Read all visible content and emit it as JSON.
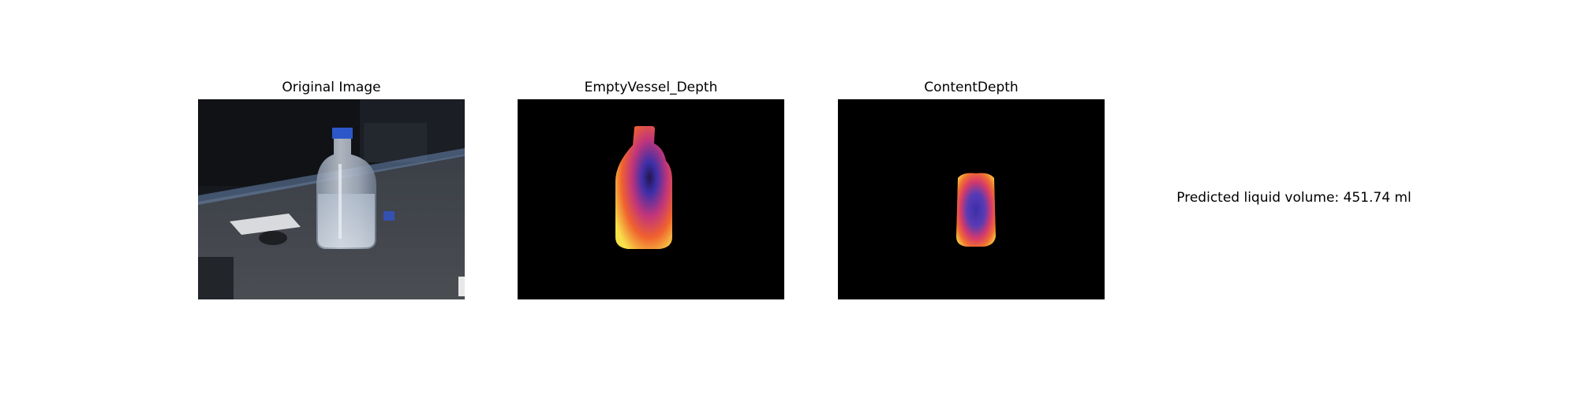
{
  "panels": [
    {
      "title": "Original Image",
      "icon": "photo-icon"
    },
    {
      "title": "EmptyVessel_Depth",
      "icon": "depth-map-icon"
    },
    {
      "title": "ContentDepth",
      "icon": "depth-map-icon"
    }
  ],
  "prediction": {
    "text": "Predicted liquid volume: 451.74 ml"
  },
  "colors": {
    "background": "#ffffff",
    "mask_background": "#000000",
    "depth_low": "#3c2fa8",
    "depth_mid": "#e0305a",
    "depth_high": "#f7e14a"
  }
}
